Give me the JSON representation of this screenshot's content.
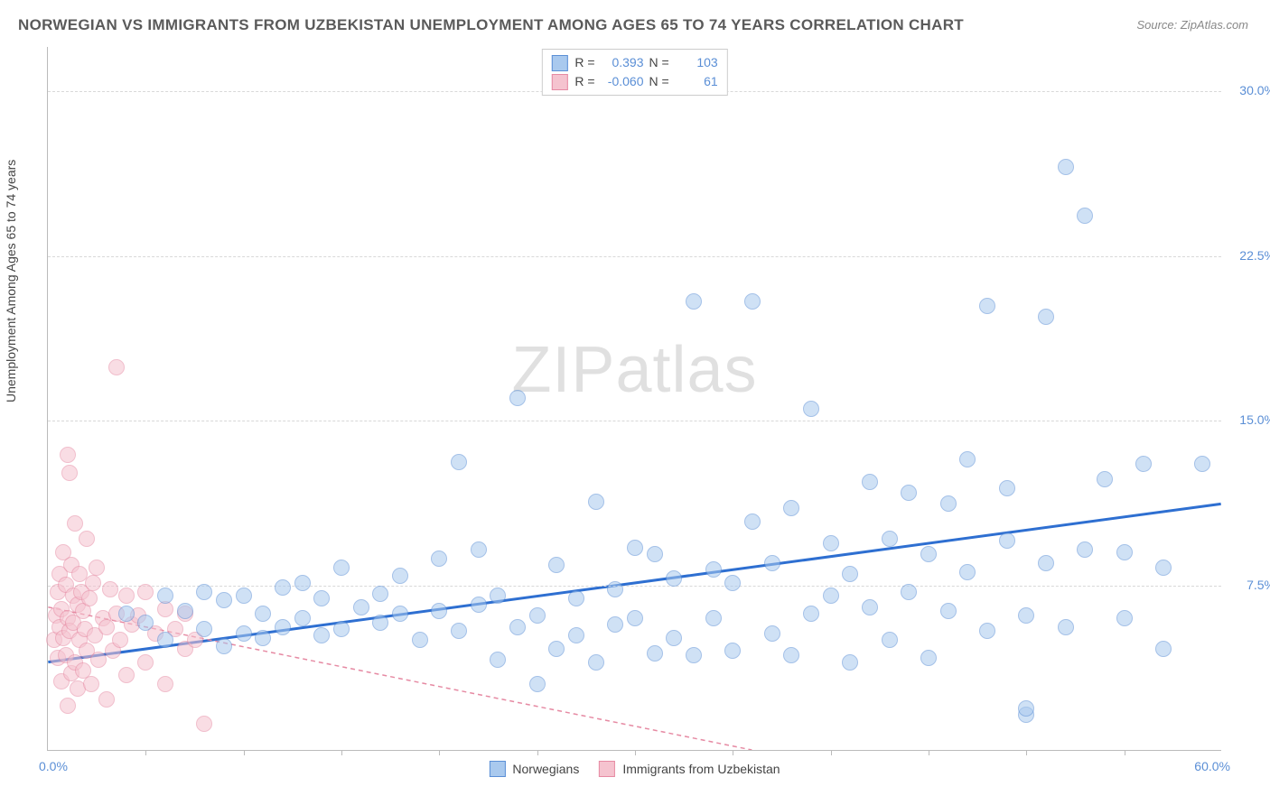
{
  "title": "NORWEGIAN VS IMMIGRANTS FROM UZBEKISTAN UNEMPLOYMENT AMONG AGES 65 TO 74 YEARS CORRELATION CHART",
  "source": "Source: ZipAtlas.com",
  "ylabel": "Unemployment Among Ages 65 to 74 years",
  "watermark_a": "ZIP",
  "watermark_b": "atlas",
  "chart": {
    "type": "scatter",
    "xlim": [
      0,
      60
    ],
    "ylim": [
      0,
      32
    ],
    "xtick_step": 5,
    "yticks": [
      7.5,
      15.0,
      22.5,
      30.0
    ],
    "ytick_labels": [
      "7.5%",
      "15.0%",
      "22.5%",
      "30.0%"
    ],
    "x_min_label": "0.0%",
    "x_max_label": "60.0%",
    "background_color": "#ffffff",
    "grid_color": "#d8d8d8",
    "axis_color": "#bbbbbb",
    "tick_label_color": "#5b8fd6",
    "marker_radius": 9,
    "marker_opacity": 0.55,
    "series": [
      {
        "name": "Norwegians",
        "color_fill": "#a9c9ee",
        "color_stroke": "#5b8fd6",
        "R": "0.393",
        "N": "103",
        "trend": {
          "y_at_x0": 4.0,
          "y_at_xmax": 11.2,
          "stroke": "#2e6fd1",
          "width": 3,
          "dash": "none"
        },
        "points": [
          [
            4,
            6.2
          ],
          [
            5,
            5.8
          ],
          [
            6,
            7.0
          ],
          [
            6,
            5.0
          ],
          [
            7,
            6.3
          ],
          [
            8,
            5.5
          ],
          [
            8,
            7.2
          ],
          [
            9,
            4.7
          ],
          [
            9,
            6.8
          ],
          [
            10,
            5.3
          ],
          [
            10,
            7.0
          ],
          [
            11,
            6.2
          ],
          [
            11,
            5.1
          ],
          [
            12,
            7.4
          ],
          [
            12,
            5.6
          ],
          [
            13,
            6.0
          ],
          [
            13,
            7.6
          ],
          [
            14,
            5.2
          ],
          [
            14,
            6.9
          ],
          [
            15,
            8.3
          ],
          [
            15,
            5.5
          ],
          [
            16,
            6.5
          ],
          [
            17,
            7.1
          ],
          [
            17,
            5.8
          ],
          [
            18,
            6.2
          ],
          [
            18,
            7.9
          ],
          [
            19,
            5.0
          ],
          [
            20,
            8.7
          ],
          [
            20,
            6.3
          ],
          [
            21,
            13.1
          ],
          [
            21,
            5.4
          ],
          [
            22,
            6.6
          ],
          [
            22,
            9.1
          ],
          [
            23,
            4.1
          ],
          [
            23,
            7.0
          ],
          [
            24,
            5.6
          ],
          [
            24,
            16.0
          ],
          [
            25,
            6.1
          ],
          [
            25,
            3.0
          ],
          [
            26,
            8.4
          ],
          [
            26,
            4.6
          ],
          [
            27,
            5.2
          ],
          [
            27,
            6.9
          ],
          [
            28,
            11.3
          ],
          [
            28,
            4.0
          ],
          [
            29,
            7.3
          ],
          [
            29,
            5.7
          ],
          [
            30,
            9.2
          ],
          [
            30,
            6.0
          ],
          [
            31,
            4.4
          ],
          [
            31,
            8.9
          ],
          [
            32,
            5.1
          ],
          [
            32,
            7.8
          ],
          [
            33,
            20.4
          ],
          [
            33,
            4.3
          ],
          [
            34,
            8.2
          ],
          [
            34,
            6.0
          ],
          [
            35,
            4.5
          ],
          [
            35,
            7.6
          ],
          [
            36,
            10.4
          ],
          [
            36,
            20.4
          ],
          [
            37,
            5.3
          ],
          [
            37,
            8.5
          ],
          [
            38,
            4.3
          ],
          [
            38,
            11.0
          ],
          [
            39,
            6.2
          ],
          [
            39,
            15.5
          ],
          [
            40,
            7.0
          ],
          [
            40,
            9.4
          ],
          [
            41,
            4.0
          ],
          [
            41,
            8.0
          ],
          [
            42,
            12.2
          ],
          [
            42,
            6.5
          ],
          [
            43,
            9.6
          ],
          [
            43,
            5.0
          ],
          [
            44,
            11.7
          ],
          [
            44,
            7.2
          ],
          [
            45,
            8.9
          ],
          [
            45,
            4.2
          ],
          [
            46,
            11.2
          ],
          [
            46,
            6.3
          ],
          [
            47,
            13.2
          ],
          [
            47,
            8.1
          ],
          [
            48,
            20.2
          ],
          [
            48,
            5.4
          ],
          [
            49,
            9.5
          ],
          [
            49,
            11.9
          ],
          [
            50,
            6.1
          ],
          [
            50,
            1.6
          ],
          [
            50,
            1.9
          ],
          [
            51,
            19.7
          ],
          [
            51,
            8.5
          ],
          [
            52,
            26.5
          ],
          [
            52,
            5.6
          ],
          [
            53,
            9.1
          ],
          [
            53,
            24.3
          ],
          [
            54,
            12.3
          ],
          [
            55,
            6.0
          ],
          [
            55,
            9.0
          ],
          [
            56,
            13.0
          ],
          [
            57,
            4.6
          ],
          [
            57,
            8.3
          ],
          [
            59,
            13.0
          ]
        ]
      },
      {
        "name": "Immigrants from Uzbekistan",
        "color_fill": "#f5c3cf",
        "color_stroke": "#e68aa3",
        "R": "-0.060",
        "N": "61",
        "trend": {
          "y_at_x0": 6.5,
          "y_at_xmax": 0.0,
          "x_end": 36,
          "stroke": "#e68aa3",
          "width": 1.5,
          "dash": "5,4"
        },
        "points": [
          [
            0.3,
            5.0
          ],
          [
            0.4,
            6.1
          ],
          [
            0.5,
            7.2
          ],
          [
            0.5,
            4.2
          ],
          [
            0.6,
            8.0
          ],
          [
            0.6,
            5.6
          ],
          [
            0.7,
            6.4
          ],
          [
            0.7,
            3.1
          ],
          [
            0.8,
            9.0
          ],
          [
            0.8,
            5.1
          ],
          [
            0.9,
            7.5
          ],
          [
            0.9,
            4.3
          ],
          [
            1.0,
            13.4
          ],
          [
            1.0,
            6.0
          ],
          [
            1.0,
            2.0
          ],
          [
            1.1,
            12.6
          ],
          [
            1.1,
            5.4
          ],
          [
            1.2,
            8.4
          ],
          [
            1.2,
            3.5
          ],
          [
            1.3,
            7.0
          ],
          [
            1.3,
            5.8
          ],
          [
            1.4,
            10.3
          ],
          [
            1.4,
            4.0
          ],
          [
            1.5,
            6.6
          ],
          [
            1.5,
            2.8
          ],
          [
            1.6,
            8.0
          ],
          [
            1.6,
            5.0
          ],
          [
            1.7,
            7.2
          ],
          [
            1.8,
            3.6
          ],
          [
            1.8,
            6.3
          ],
          [
            1.9,
            5.5
          ],
          [
            2.0,
            9.6
          ],
          [
            2.0,
            4.5
          ],
          [
            2.1,
            6.9
          ],
          [
            2.2,
            3.0
          ],
          [
            2.3,
            7.6
          ],
          [
            2.4,
            5.2
          ],
          [
            2.5,
            8.3
          ],
          [
            2.6,
            4.1
          ],
          [
            2.8,
            6.0
          ],
          [
            3.0,
            5.6
          ],
          [
            3.0,
            2.3
          ],
          [
            3.2,
            7.3
          ],
          [
            3.3,
            4.5
          ],
          [
            3.5,
            6.2
          ],
          [
            3.5,
            17.4
          ],
          [
            3.7,
            5.0
          ],
          [
            4.0,
            7.0
          ],
          [
            4.0,
            3.4
          ],
          [
            4.3,
            5.7
          ],
          [
            4.6,
            6.1
          ],
          [
            5.0,
            4.0
          ],
          [
            5.0,
            7.2
          ],
          [
            5.5,
            5.3
          ],
          [
            6.0,
            6.4
          ],
          [
            6.0,
            3.0
          ],
          [
            6.5,
            5.5
          ],
          [
            7.0,
            4.6
          ],
          [
            7.0,
            6.2
          ],
          [
            7.5,
            5.0
          ],
          [
            8.0,
            1.2
          ]
        ]
      }
    ]
  },
  "legend_bottom": {
    "a": "Norwegians",
    "b": "Immigrants from Uzbekistan"
  },
  "legend_top": {
    "r_label": "R =",
    "n_label": "N ="
  }
}
